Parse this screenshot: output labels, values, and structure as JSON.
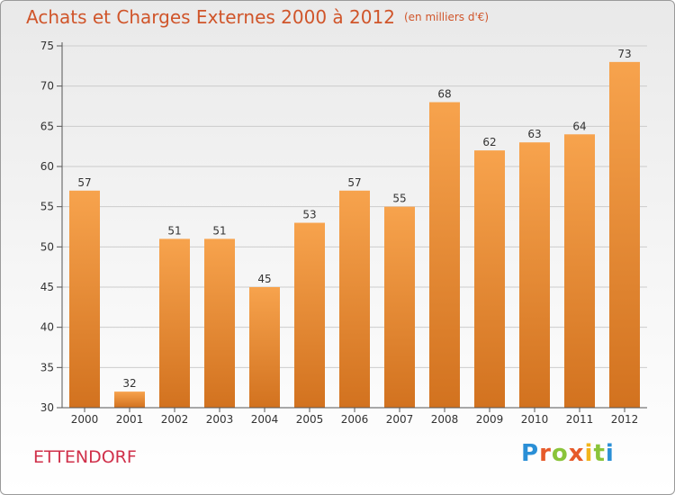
{
  "header": {
    "title": "Achats et Charges Externes 2000 à 2012",
    "unit": "(en milliers d'€)"
  },
  "footer": {
    "commune": "ETTENDORF",
    "logo": "Proxiti"
  },
  "colors": {
    "bar_top": "#f7a34d",
    "bar_bottom": "#d2721f",
    "axis": "#555555",
    "grid": "#cccccc",
    "title": "#d0552a",
    "commune": "#d0304a"
  },
  "chart_data": {
    "type": "bar",
    "title": "Achats et Charges Externes 2000 à 2012",
    "subtitle": "(en milliers d'€)",
    "xlabel": "",
    "ylabel": "",
    "ylim": [
      30,
      75
    ],
    "yticks": [
      30,
      35,
      40,
      45,
      50,
      55,
      60,
      65,
      70,
      75
    ],
    "grid": true,
    "categories": [
      "2000",
      "2001",
      "2002",
      "2003",
      "2004",
      "2005",
      "2006",
      "2007",
      "2008",
      "2009",
      "2010",
      "2011",
      "2012"
    ],
    "values": [
      57,
      32,
      51,
      51,
      45,
      53,
      57,
      55,
      68,
      62,
      63,
      64,
      73
    ]
  }
}
